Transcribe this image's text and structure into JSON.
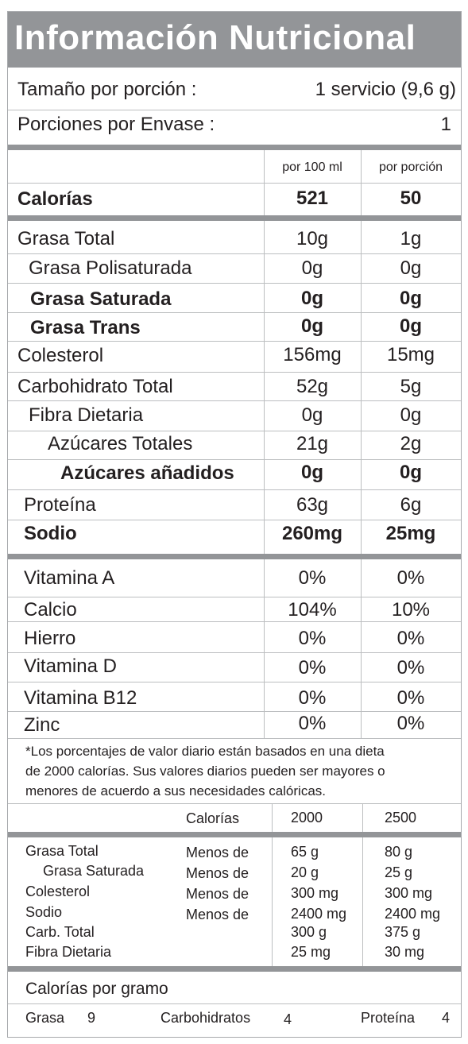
{
  "title": "Información Nutricional",
  "serving": {
    "size_label": "Tamaño por porción :",
    "size_value": "1 servicio  (9,6 g)",
    "servings_label": "Porciones por Envase :",
    "servings_value": "1"
  },
  "columns": {
    "per100": "por 100 ml",
    "perserving": "por porción"
  },
  "calories": {
    "label": "Calorías",
    "per100": "521",
    "perserving": "50"
  },
  "nutrients": [
    {
      "label": "Grasa Total",
      "per100": "10g",
      "perserving": "1g"
    },
    {
      "label": "Grasa Polisaturada",
      "per100": "0g",
      "perserving": "0g"
    },
    {
      "label": "Grasa Saturada",
      "per100": "0g",
      "perserving": "0g"
    },
    {
      "label": "Grasa Trans",
      "per100": "0g",
      "perserving": "0g"
    },
    {
      "label": "Colesterol",
      "per100": "156mg",
      "perserving": "15mg"
    },
    {
      "label": "Carbohidrato Total",
      "per100": "52g",
      "perserving": "5g"
    },
    {
      "label": "Fibra Dietaria",
      "per100": "0g",
      "perserving": "0g"
    },
    {
      "label": "Azúcares Totales",
      "per100": "21g",
      "perserving": "2g"
    },
    {
      "label": "Azúcares añadidos",
      "per100": "0g",
      "perserving": "0g"
    },
    {
      "label": "Proteína",
      "per100": "63g",
      "perserving": "6g"
    },
    {
      "label": "Sodio",
      "per100": "260mg",
      "perserving": "25mg"
    }
  ],
  "vitamins": [
    {
      "label": "Vitamina A",
      "per100": "0%",
      "perserving": "0%"
    },
    {
      "label": "Calcio",
      "per100": "104%",
      "perserving": "10%"
    },
    {
      "label": "Hierro",
      "per100": "0%",
      "perserving": "0%"
    },
    {
      "label": "Vitamina D",
      "per100": "0%",
      "perserving": "0%"
    },
    {
      "label": "Vitamina B12",
      "per100": "0%",
      "perserving": "0%"
    },
    {
      "label": "Zinc",
      "per100": "0%",
      "perserving": "0%"
    }
  ],
  "footnote": {
    "line1": "*Los porcentajes de valor diario están basados en una dieta",
    "line2": "de 2000 calorías. Sus valores diarios pueden ser mayores o",
    "line3": "menores de acuerdo a sus necesidades calóricas."
  },
  "daily_values": {
    "header": {
      "label": "Calorías",
      "col1": "2000",
      "col2": "2500"
    },
    "rows": [
      {
        "label": "Grasa Total",
        "qual": "Menos de",
        "v1": "65 g",
        "v2": "80 g"
      },
      {
        "label": "Grasa Saturada",
        "qual": "Menos de",
        "v1": "20 g",
        "v2": "25 g"
      },
      {
        "label": "Colesterol",
        "qual": "Menos de",
        "v1": "300 mg",
        "v2": "300 mg"
      },
      {
        "label": "Sodio",
        "qual": "Menos de",
        "v1": "2400 mg",
        "v2": "2400 mg"
      },
      {
        "label": "Carb. Total",
        "qual": "",
        "v1": "300 g",
        "v2": "375 g"
      },
      {
        "label": "Fibra Dietaria",
        "qual": "",
        "v1": "25 mg",
        "v2": "30 mg"
      }
    ]
  },
  "calories_per_gram": {
    "title": "Calorías por gramo",
    "fat_label": "Grasa",
    "fat_value": "9",
    "carb_label": "Carbohidratos",
    "carb_value": "4",
    "protein_label": "Proteína",
    "protein_value": "4"
  }
}
